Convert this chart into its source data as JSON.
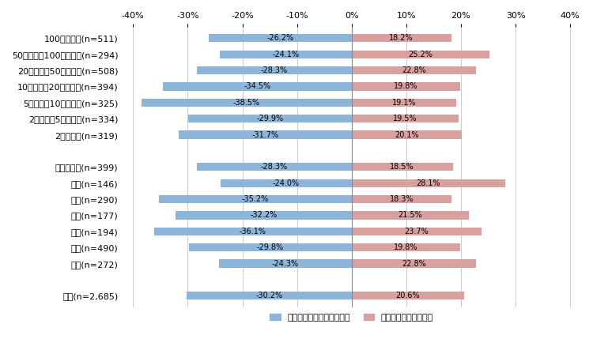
{
  "categories": [
    "100万人以上(n=511)",
    "50万人以上100万人未満(n=294)",
    "20万人以上50万人未満(n=508)",
    "10万人以上20万人未満(n=394)",
    "5万人以上10万人未満(n=325)",
    "2万人以上5万人未満(n=334)",
    "2万人未満(n=319)",
    "",
    "総務・企画(n=399)",
    "税務(n=146)",
    "民生(n=290)",
    "衛生(n=177)",
    "土木(n=194)",
    "教育(n=490)",
    "消防(n=272)",
    "",
    "合計(n=2,685)"
  ],
  "negative_values": [
    -26.2,
    -24.1,
    -28.3,
    -34.5,
    -38.5,
    -29.9,
    -31.7,
    null,
    -28.3,
    -24.0,
    -35.2,
    -32.2,
    -36.1,
    -29.8,
    -24.3,
    null,
    -30.2
  ],
  "positive_values": [
    18.2,
    25.2,
    22.8,
    19.8,
    19.1,
    19.5,
    20.1,
    null,
    18.5,
    28.1,
    18.3,
    21.5,
    23.7,
    19.8,
    22.8,
    null,
    20.6
  ],
  "negative_color": "#8db4d9",
  "positive_color": "#d9a0a0",
  "xlim": [
    -42,
    42
  ],
  "xticks": [
    -40,
    -30,
    -20,
    -10,
    0,
    10,
    20,
    30,
    40
  ],
  "xtick_labels": [
    "-40%",
    "-30%",
    "-20%",
    "-10%",
    "0%",
    "10%",
    "20%",
    "30%",
    "40%"
  ],
  "legend_negative": "応えることが難しくなる計",
  "legend_positive": "応えることができる計",
  "bar_height": 0.5,
  "figure_width": 7.5,
  "figure_height": 4.48,
  "dpi": 100,
  "background_color": "#ffffff",
  "grid_color": "#cccccc",
  "text_fontsize": 7.0,
  "label_fontsize": 8.0
}
